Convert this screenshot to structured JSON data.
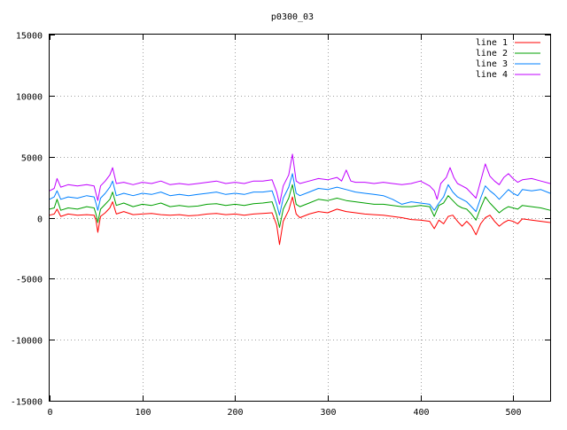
{
  "chart_data": {
    "type": "line",
    "title": "p0300_03",
    "xlabel": "",
    "ylabel": "",
    "xlim": [
      0,
      540
    ],
    "ylim": [
      -15000,
      15000
    ],
    "x_ticks": [
      0,
      100,
      200,
      300,
      400,
      500
    ],
    "y_ticks": [
      -15000,
      -10000,
      -5000,
      0,
      5000,
      10000,
      15000
    ],
    "grid": true,
    "legend_position": "top-right",
    "series": [
      {
        "name": "line 1",
        "color": "#ff0000",
        "points": [
          [
            0,
            200
          ],
          [
            5,
            300
          ],
          [
            8,
            700
          ],
          [
            12,
            100
          ],
          [
            20,
            300
          ],
          [
            30,
            200
          ],
          [
            40,
            250
          ],
          [
            48,
            200
          ],
          [
            50,
            -200
          ],
          [
            52,
            -1200
          ],
          [
            55,
            100
          ],
          [
            60,
            400
          ],
          [
            65,
            800
          ],
          [
            68,
            1300
          ],
          [
            72,
            300
          ],
          [
            80,
            500
          ],
          [
            90,
            250
          ],
          [
            100,
            300
          ],
          [
            110,
            350
          ],
          [
            120,
            250
          ],
          [
            130,
            200
          ],
          [
            140,
            250
          ],
          [
            150,
            150
          ],
          [
            160,
            200
          ],
          [
            170,
            300
          ],
          [
            180,
            350
          ],
          [
            190,
            250
          ],
          [
            200,
            300
          ],
          [
            210,
            200
          ],
          [
            220,
            300
          ],
          [
            230,
            350
          ],
          [
            240,
            400
          ],
          [
            245,
            -600
          ],
          [
            248,
            -2200
          ],
          [
            252,
            -300
          ],
          [
            258,
            600
          ],
          [
            262,
            1700
          ],
          [
            266,
            300
          ],
          [
            270,
            0
          ],
          [
            280,
            300
          ],
          [
            290,
            500
          ],
          [
            300,
            400
          ],
          [
            310,
            700
          ],
          [
            320,
            500
          ],
          [
            330,
            400
          ],
          [
            340,
            300
          ],
          [
            350,
            250
          ],
          [
            360,
            200
          ],
          [
            370,
            100
          ],
          [
            380,
            0
          ],
          [
            390,
            -150
          ],
          [
            400,
            -200
          ],
          [
            410,
            -300
          ],
          [
            415,
            -900
          ],
          [
            420,
            -200
          ],
          [
            425,
            -500
          ],
          [
            430,
            100
          ],
          [
            435,
            200
          ],
          [
            440,
            -300
          ],
          [
            445,
            -700
          ],
          [
            450,
            -300
          ],
          [
            455,
            -700
          ],
          [
            460,
            -1400
          ],
          [
            465,
            -500
          ],
          [
            470,
            0
          ],
          [
            475,
            200
          ],
          [
            480,
            -300
          ],
          [
            485,
            -700
          ],
          [
            490,
            -400
          ],
          [
            495,
            -200
          ],
          [
            500,
            -300
          ],
          [
            505,
            -500
          ],
          [
            510,
            -100
          ],
          [
            520,
            -200
          ],
          [
            530,
            -300
          ],
          [
            540,
            -400
          ]
        ]
      },
      {
        "name": "line 2",
        "color": "#00a000",
        "points": [
          [
            0,
            700
          ],
          [
            5,
            800
          ],
          [
            8,
            1500
          ],
          [
            12,
            600
          ],
          [
            20,
            800
          ],
          [
            30,
            700
          ],
          [
            40,
            900
          ],
          [
            48,
            800
          ],
          [
            50,
            300
          ],
          [
            52,
            -400
          ],
          [
            55,
            700
          ],
          [
            60,
            1100
          ],
          [
            65,
            1500
          ],
          [
            68,
            2100
          ],
          [
            72,
            1000
          ],
          [
            80,
            1200
          ],
          [
            90,
            900
          ],
          [
            100,
            1100
          ],
          [
            110,
            1000
          ],
          [
            120,
            1200
          ],
          [
            130,
            900
          ],
          [
            140,
            1000
          ],
          [
            150,
            900
          ],
          [
            160,
            950
          ],
          [
            170,
            1100
          ],
          [
            180,
            1150
          ],
          [
            190,
            1000
          ],
          [
            200,
            1100
          ],
          [
            210,
            1000
          ],
          [
            220,
            1150
          ],
          [
            230,
            1200
          ],
          [
            240,
            1300
          ],
          [
            245,
            200
          ],
          [
            248,
            -800
          ],
          [
            252,
            700
          ],
          [
            258,
            1600
          ],
          [
            262,
            2700
          ],
          [
            266,
            1100
          ],
          [
            270,
            900
          ],
          [
            280,
            1200
          ],
          [
            290,
            1500
          ],
          [
            300,
            1400
          ],
          [
            310,
            1600
          ],
          [
            320,
            1400
          ],
          [
            330,
            1300
          ],
          [
            340,
            1200
          ],
          [
            350,
            1100
          ],
          [
            360,
            1100
          ],
          [
            370,
            1000
          ],
          [
            380,
            900
          ],
          [
            390,
            900
          ],
          [
            400,
            1000
          ],
          [
            410,
            900
          ],
          [
            415,
            100
          ],
          [
            420,
            1000
          ],
          [
            425,
            1200
          ],
          [
            430,
            1800
          ],
          [
            435,
            1400
          ],
          [
            440,
            1000
          ],
          [
            445,
            800
          ],
          [
            450,
            700
          ],
          [
            455,
            300
          ],
          [
            460,
            -200
          ],
          [
            465,
            800
          ],
          [
            470,
            1700
          ],
          [
            475,
            1200
          ],
          [
            480,
            800
          ],
          [
            485,
            400
          ],
          [
            490,
            700
          ],
          [
            495,
            900
          ],
          [
            500,
            800
          ],
          [
            505,
            700
          ],
          [
            510,
            1000
          ],
          [
            520,
            900
          ],
          [
            530,
            800
          ],
          [
            540,
            600
          ]
        ]
      },
      {
        "name": "line 3",
        "color": "#0080ff",
        "points": [
          [
            0,
            1500
          ],
          [
            5,
            1700
          ],
          [
            8,
            2200
          ],
          [
            12,
            1500
          ],
          [
            20,
            1700
          ],
          [
            30,
            1600
          ],
          [
            40,
            1800
          ],
          [
            48,
            1700
          ],
          [
            50,
            1200
          ],
          [
            52,
            600
          ],
          [
            55,
            1600
          ],
          [
            60,
            2000
          ],
          [
            65,
            2500
          ],
          [
            68,
            3000
          ],
          [
            72,
            1800
          ],
          [
            80,
            2000
          ],
          [
            90,
            1800
          ],
          [
            100,
            2000
          ],
          [
            110,
            1900
          ],
          [
            120,
            2100
          ],
          [
            130,
            1800
          ],
          [
            140,
            1900
          ],
          [
            150,
            1800
          ],
          [
            160,
            1900
          ],
          [
            170,
            2000
          ],
          [
            180,
            2100
          ],
          [
            190,
            1900
          ],
          [
            200,
            2000
          ],
          [
            210,
            1900
          ],
          [
            220,
            2100
          ],
          [
            230,
            2100
          ],
          [
            240,
            2200
          ],
          [
            245,
            1100
          ],
          [
            248,
            200
          ],
          [
            252,
            1600
          ],
          [
            258,
            2500
          ],
          [
            262,
            3600
          ],
          [
            266,
            2000
          ],
          [
            270,
            1800
          ],
          [
            280,
            2100
          ],
          [
            290,
            2400
          ],
          [
            300,
            2300
          ],
          [
            310,
            2500
          ],
          [
            320,
            2300
          ],
          [
            330,
            2100
          ],
          [
            340,
            2000
          ],
          [
            350,
            1900
          ],
          [
            360,
            1800
          ],
          [
            370,
            1500
          ],
          [
            380,
            1100
          ],
          [
            390,
            1300
          ],
          [
            400,
            1200
          ],
          [
            410,
            1100
          ],
          [
            415,
            600
          ],
          [
            420,
            1200
          ],
          [
            425,
            1700
          ],
          [
            430,
            2700
          ],
          [
            435,
            2100
          ],
          [
            440,
            1700
          ],
          [
            445,
            1500
          ],
          [
            450,
            1300
          ],
          [
            455,
            900
          ],
          [
            460,
            500
          ],
          [
            465,
            1600
          ],
          [
            470,
            2600
          ],
          [
            475,
            2200
          ],
          [
            480,
            1900
          ],
          [
            485,
            1500
          ],
          [
            490,
            1900
          ],
          [
            495,
            2300
          ],
          [
            500,
            2000
          ],
          [
            505,
            1800
          ],
          [
            510,
            2300
          ],
          [
            520,
            2200
          ],
          [
            530,
            2300
          ],
          [
            540,
            2000
          ]
        ]
      },
      {
        "name": "line 4",
        "color": "#c000ff",
        "points": [
          [
            0,
            2200
          ],
          [
            5,
            2400
          ],
          [
            8,
            3200
          ],
          [
            12,
            2500
          ],
          [
            20,
            2700
          ],
          [
            30,
            2600
          ],
          [
            40,
            2700
          ],
          [
            48,
            2600
          ],
          [
            50,
            2000
          ],
          [
            52,
            1400
          ],
          [
            55,
            2600
          ],
          [
            60,
            3000
          ],
          [
            65,
            3500
          ],
          [
            68,
            4100
          ],
          [
            72,
            2800
          ],
          [
            80,
            2900
          ],
          [
            90,
            2700
          ],
          [
            100,
            2900
          ],
          [
            110,
            2800
          ],
          [
            120,
            3000
          ],
          [
            130,
            2700
          ],
          [
            140,
            2800
          ],
          [
            150,
            2700
          ],
          [
            160,
            2800
          ],
          [
            170,
            2900
          ],
          [
            180,
            3000
          ],
          [
            190,
            2800
          ],
          [
            200,
            2900
          ],
          [
            210,
            2800
          ],
          [
            220,
            3000
          ],
          [
            230,
            3000
          ],
          [
            240,
            3100
          ],
          [
            245,
            2100
          ],
          [
            248,
            1100
          ],
          [
            252,
            2600
          ],
          [
            258,
            3500
          ],
          [
            262,
            5200
          ],
          [
            266,
            3000
          ],
          [
            270,
            2800
          ],
          [
            280,
            3000
          ],
          [
            290,
            3200
          ],
          [
            300,
            3100
          ],
          [
            310,
            3300
          ],
          [
            315,
            3000
          ],
          [
            320,
            3900
          ],
          [
            325,
            3000
          ],
          [
            330,
            2900
          ],
          [
            340,
            2900
          ],
          [
            350,
            2800
          ],
          [
            360,
            2900
          ],
          [
            370,
            2800
          ],
          [
            380,
            2700
          ],
          [
            390,
            2800
          ],
          [
            400,
            3000
          ],
          [
            410,
            2600
          ],
          [
            415,
            2200
          ],
          [
            418,
            1500
          ],
          [
            422,
            2800
          ],
          [
            428,
            3300
          ],
          [
            432,
            4100
          ],
          [
            436,
            3300
          ],
          [
            440,
            2800
          ],
          [
            445,
            2600
          ],
          [
            450,
            2400
          ],
          [
            455,
            2000
          ],
          [
            460,
            1600
          ],
          [
            465,
            3000
          ],
          [
            470,
            4400
          ],
          [
            475,
            3400
          ],
          [
            480,
            3000
          ],
          [
            485,
            2700
          ],
          [
            490,
            3300
          ],
          [
            495,
            3600
          ],
          [
            500,
            3200
          ],
          [
            505,
            2900
          ],
          [
            510,
            3100
          ],
          [
            520,
            3200
          ],
          [
            530,
            3000
          ],
          [
            540,
            2800
          ]
        ]
      }
    ]
  }
}
